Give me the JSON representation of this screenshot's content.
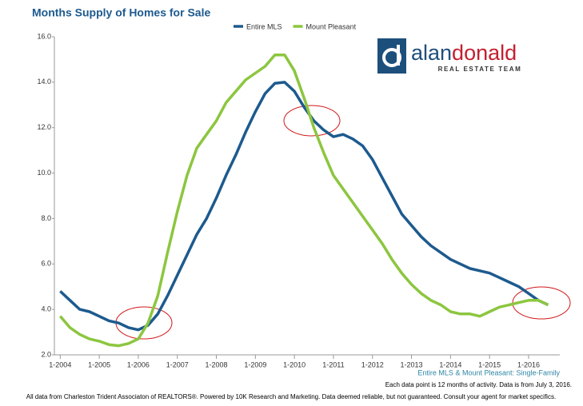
{
  "chart_data": {
    "type": "line",
    "title": "Months Supply of Homes for Sale",
    "subtitle": "Entire MLS & Mount Pleasant: Single-Family",
    "notes": [
      "Each data point is 12 months of activity. Data is from July 3, 2016.",
      "All data from Charleston Trident Associaton of REALTORS®. Powered by 10K Research and Marketing. Data deemed reliable, but not guaranteed. Consult your agent for market specifics."
    ],
    "logo": {
      "name_first": "alan",
      "name_second": "donald",
      "tagline": "REAL ESTATE TEAM"
    },
    "x": [
      2004,
      2004.25,
      2004.5,
      2004.75,
      2005,
      2005.25,
      2005.5,
      2005.75,
      2006,
      2006.25,
      2006.5,
      2006.75,
      2007,
      2007.25,
      2007.5,
      2007.75,
      2008,
      2008.25,
      2008.5,
      2008.75,
      2009,
      2009.25,
      2009.5,
      2009.75,
      2010,
      2010.25,
      2010.5,
      2010.75,
      2011,
      2011.25,
      2011.5,
      2011.75,
      2012,
      2012.25,
      2012.5,
      2012.75,
      2013,
      2013.25,
      2013.5,
      2013.75,
      2014,
      2014.25,
      2014.5,
      2014.75,
      2015,
      2015.25,
      2015.5,
      2015.75,
      2016,
      2016.25,
      2016.5
    ],
    "series": [
      {
        "name": "Entire MLS",
        "color": "#1d5a8e",
        "values": [
          4.8,
          4.4,
          4.0,
          3.9,
          3.7,
          3.5,
          3.4,
          3.2,
          3.1,
          3.3,
          3.8,
          4.6,
          5.5,
          6.4,
          7.3,
          8.0,
          8.9,
          9.9,
          10.8,
          11.8,
          12.7,
          13.5,
          13.95,
          14.0,
          13.6,
          12.9,
          12.3,
          11.9,
          11.6,
          11.7,
          11.5,
          11.2,
          10.6,
          9.8,
          9.0,
          8.2,
          7.7,
          7.2,
          6.8,
          6.5,
          6.2,
          6.0,
          5.8,
          5.7,
          5.6,
          5.4,
          5.2,
          5.0,
          4.7,
          4.4,
          4.2
        ]
      },
      {
        "name": "Mount Pleasant",
        "color": "#8cc63f",
        "values": [
          3.7,
          3.2,
          2.9,
          2.7,
          2.6,
          2.45,
          2.4,
          2.5,
          2.7,
          3.4,
          4.6,
          6.5,
          8.3,
          9.9,
          11.1,
          11.7,
          12.3,
          13.1,
          13.6,
          14.1,
          14.4,
          14.7,
          15.2,
          15.2,
          14.5,
          13.3,
          12.0,
          10.9,
          9.9,
          9.3,
          8.7,
          8.1,
          7.5,
          6.9,
          6.2,
          5.6,
          5.1,
          4.7,
          4.4,
          4.2,
          3.9,
          3.8,
          3.8,
          3.7,
          3.9,
          4.1,
          4.2,
          4.3,
          4.4,
          4.4,
          4.2
        ]
      }
    ],
    "xlim": [
      2003.85,
      2016.8
    ],
    "xticks": [
      {
        "value": 2004,
        "label": "1-2004"
      },
      {
        "value": 2005,
        "label": "1-2005"
      },
      {
        "value": 2006,
        "label": "1-2006"
      },
      {
        "value": 2007,
        "label": "1-2007"
      },
      {
        "value": 2008,
        "label": "1-2008"
      },
      {
        "value": 2009,
        "label": "1-2009"
      },
      {
        "value": 2010,
        "label": "1-2010"
      },
      {
        "value": 2011,
        "label": "1-2011"
      },
      {
        "value": 2012,
        "label": "1-2012"
      },
      {
        "value": 2013,
        "label": "1-2013"
      },
      {
        "value": 2014,
        "label": "1-2014"
      },
      {
        "value": 2015,
        "label": "1-2015"
      },
      {
        "value": 2016,
        "label": "1-2016"
      }
    ],
    "ylim": [
      2,
      16
    ],
    "yticks": [
      {
        "value": 2,
        "label": "2.0"
      },
      {
        "value": 4,
        "label": "4.0"
      },
      {
        "value": 6,
        "label": "6.0"
      },
      {
        "value": 8,
        "label": "8.0"
      },
      {
        "value": 10,
        "label": "10.0"
      },
      {
        "value": 12,
        "label": "12.0"
      },
      {
        "value": 14,
        "label": "14.0"
      },
      {
        "value": 16,
        "label": "16.0"
      }
    ],
    "grid": false,
    "legend": "top"
  }
}
